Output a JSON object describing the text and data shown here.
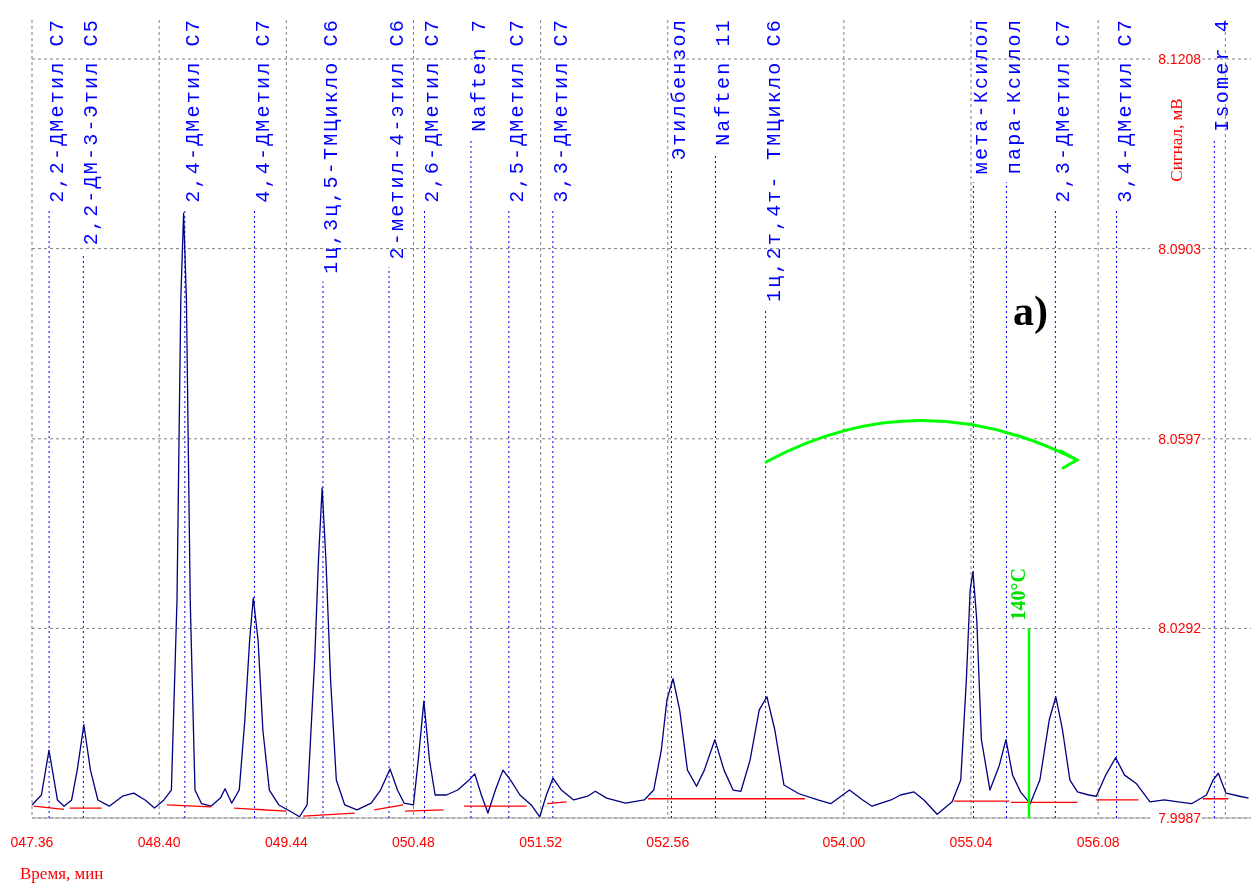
{
  "chart_data": {
    "type": "line",
    "xlabel": "Время, мин",
    "ylabel": "Сигнал, мВ",
    "xlim": [
      47.36,
      57.33
    ],
    "ylim": [
      7.9987,
      8.1208
    ],
    "xticks": [
      {
        "value": 47.36,
        "label": "047.36"
      },
      {
        "value": 48.4,
        "label": "048.40"
      },
      {
        "value": 49.44,
        "label": "049.44"
      },
      {
        "value": 50.48,
        "label": "050.48"
      },
      {
        "value": 51.52,
        "label": "051.52"
      },
      {
        "value": 52.56,
        "label": "052.56"
      },
      {
        "value": 54.0,
        "label": "054.00"
      },
      {
        "value": 55.04,
        "label": "055.04"
      },
      {
        "value": 56.08,
        "label": "056.08"
      },
      {
        "value": 57.12,
        "label": null
      }
    ],
    "yticks": [
      7.9987,
      8.0292,
      8.0597,
      8.0903,
      8.1208
    ],
    "grid": true,
    "series": [
      {
        "color": "#000080",
        "x": [
          47.36,
          47.437,
          47.499,
          47.568,
          47.622,
          47.684,
          47.73,
          47.784,
          47.838,
          47.899,
          47.992,
          48.1,
          48.192,
          48.285,
          48.362,
          48.439,
          48.5,
          48.546,
          48.577,
          48.6,
          48.623,
          48.654,
          48.693,
          48.747,
          48.824,
          48.901,
          48.939,
          48.993,
          49.055,
          49.101,
          49.14,
          49.17,
          49.209,
          49.248,
          49.301,
          49.379,
          49.479,
          49.548,
          49.61,
          49.672,
          49.703,
          49.733,
          49.764,
          49.802,
          49.849,
          49.918,
          50.018,
          50.134,
          50.211,
          50.288,
          50.349,
          50.403,
          50.48,
          50.519,
          50.565,
          50.611,
          50.657,
          50.75,
          50.842,
          50.935,
          50.981,
          51.035,
          51.089,
          51.15,
          51.212,
          51.274,
          51.351,
          51.443,
          51.513,
          51.567,
          51.621,
          51.69,
          51.79,
          51.905,
          51.967,
          52.06,
          52.214,
          52.368,
          52.445,
          52.507,
          52.553,
          52.603,
          52.657,
          52.721,
          52.795,
          52.859,
          52.945,
          53.02,
          53.094,
          53.158,
          53.233,
          53.308,
          53.371,
          53.435,
          53.51,
          53.633,
          53.787,
          53.893,
          54.046,
          54.154,
          54.231,
          54.386,
          54.463,
          54.574,
          54.655,
          54.763,
          54.886,
          54.956,
          55.002,
          55.033,
          55.056,
          55.087,
          55.125,
          55.195,
          55.272,
          55.326,
          55.38,
          55.445,
          55.524,
          55.603,
          55.68,
          55.734,
          55.788,
          55.849,
          55.911,
          56.003,
          56.065,
          56.142,
          56.223,
          56.296,
          56.394,
          56.504,
          56.62,
          56.735,
          56.843,
          56.966,
          57.02,
          57.063,
          57.125,
          57.236,
          57.31
        ],
        "values": [
          8.0008,
          8.0024,
          8.0096,
          8.0016,
          8.0006,
          8.0016,
          8.0064,
          8.0137,
          8.0064,
          8.0016,
          8.0006,
          8.0022,
          8.0027,
          8.0016,
          8.0003,
          8.0016,
          8.0032,
          8.0338,
          8.0821,
          8.096,
          8.0821,
          8.0338,
          8.0032,
          8.001,
          8.0006,
          8.0019,
          8.0034,
          8.0011,
          8.0032,
          8.0145,
          8.0273,
          8.0341,
          8.0273,
          8.0129,
          8.0032,
          8.0008,
          7.9997,
          7.9989,
          8.0008,
          8.0241,
          8.0402,
          8.0518,
          8.0402,
          8.0209,
          8.0048,
          8.0008,
          8.0,
          8.0011,
          8.0032,
          8.0066,
          8.0032,
          8.0011,
          8.0008,
          8.008,
          8.0175,
          8.008,
          8.0024,
          8.0024,
          8.0032,
          8.0048,
          8.0058,
          8.0024,
          7.9995,
          8.0032,
          8.0064,
          8.0048,
          8.0024,
          8.0008,
          7.9989,
          8.0024,
          8.0051,
          8.0032,
          8.0016,
          8.0022,
          8.003,
          8.0019,
          8.0011,
          8.0016,
          8.0032,
          8.0096,
          8.0177,
          8.0211,
          8.0161,
          8.0064,
          8.0038,
          8.0064,
          8.0113,
          8.0064,
          8.0032,
          8.003,
          8.008,
          8.0161,
          8.0182,
          8.0129,
          8.004,
          8.0026,
          8.0016,
          8.001,
          8.0032,
          8.0016,
          8.0006,
          8.0016,
          8.0024,
          8.0029,
          8.0016,
          7.9993,
          8.0013,
          8.0048,
          8.0209,
          8.0354,
          8.0383,
          8.0306,
          8.0113,
          8.0032,
          8.0072,
          8.0113,
          8.0056,
          8.0029,
          8.001,
          8.0048,
          8.0145,
          8.0182,
          8.0129,
          8.0048,
          8.0029,
          8.0024,
          8.0022,
          8.0056,
          8.0084,
          8.0056,
          8.0042,
          8.0013,
          8.0016,
          8.0013,
          8.001,
          8.0024,
          8.0048,
          8.0059,
          8.0027,
          8.0022,
          8.0019
        ]
      },
      {
        "color": "#ff0000",
        "x": [
          47.375,
          47.622,
          47.64,
          47.668,
          47.93,
          48.2,
          48.462,
          48.824,
          48.9,
          49.013,
          49.44,
          49.5,
          49.579,
          49.999,
          50.1,
          50.16,
          50.395,
          50.4,
          50.411,
          50.727,
          50.8,
          50.893,
          51.405,
          51.5,
          51.574,
          51.732,
          52.0,
          52.399,
          53.682,
          54.4,
          54.902,
          55.353,
          55.36,
          55.368,
          55.911,
          56.0,
          56.065,
          56.41,
          56.7,
          56.936,
          57.144
        ],
        "values": [
          8.0006,
          8.0001,
          null,
          8.0003,
          8.0003,
          null,
          8.0008,
          8.0005,
          null,
          8.0003,
          7.9998,
          null,
          7.999,
          7.9995,
          null,
          8.0,
          8.0008,
          null,
          7.9998,
          8.0,
          null,
          8.0006,
          8.0006,
          null,
          8.001,
          8.0013,
          null,
          8.0018,
          8.0018,
          null,
          8.0014,
          8.0014,
          null,
          8.0012,
          8.0012,
          null,
          8.0016,
          8.0016,
          null,
          8.0018,
          8.0018
        ]
      },
      {
        "color": "#00ff00",
        "x": [
          55.514,
          55.514
        ],
        "values": [
          7.9987,
          8.0292
        ]
      }
    ],
    "ref_lines": [
      {
        "axis": "x",
        "value": 47.5,
        "label": "2,2-ДМетил С7",
        "color": "#0000ff",
        "line_style": "dotted"
      },
      {
        "axis": "x",
        "value": 47.78,
        "label": "2,2-ДМ-3-Этил С5",
        "color": "#0000ff",
        "line_style": "dotted"
      },
      {
        "axis": "x",
        "value": 48.61,
        "label": "2,4-ДМетил С7",
        "color": "#0000ff",
        "line_style": "dotted"
      },
      {
        "axis": "x",
        "value": 49.18,
        "label": "4,4-ДМетил С7",
        "color": "#0000ff",
        "line_style": "dotted"
      },
      {
        "axis": "x",
        "value": 49.74,
        "label": "1ц,3ц,5-ТМЦикло С6",
        "color": "#0000ff",
        "line_style": "dotted"
      },
      {
        "axis": "x",
        "value": 50.28,
        "label": "2-метил-4-этил С6",
        "color": "#0000ff",
        "line_style": "dotted"
      },
      {
        "axis": "x",
        "value": 50.57,
        "label": "2,6-ДМетил С7",
        "color": "#0000ff",
        "line_style": "dotted"
      },
      {
        "axis": "x",
        "value": 50.95,
        "label": "Naften 7",
        "color": "#0000ff",
        "line_style": "dotted"
      },
      {
        "axis": "x",
        "value": 51.26,
        "label": "2,5-ДМетил С7",
        "color": "#0000ff",
        "line_style": "dotted"
      },
      {
        "axis": "x",
        "value": 51.62,
        "label": "3,3-ДМетил С7",
        "color": "#0000ff",
        "line_style": "dotted"
      },
      {
        "axis": "x",
        "value": 52.59,
        "label": "Этилбензол",
        "color": "#0000ff",
        "line_style": "dotted"
      },
      {
        "axis": "x",
        "value": 52.95,
        "label": "Naften 11",
        "color": "#0000ff",
        "line_style": "dotted"
      },
      {
        "axis": "x",
        "value": 53.36,
        "label": "1ц,2т,4т- ТМЦикло С6",
        "color": "#0000ff",
        "line_style": "dotted"
      },
      {
        "axis": "x",
        "value": 55.06,
        "label": "мета-Ксилол",
        "color": "#0000ff",
        "line_style": "dotted"
      },
      {
        "axis": "x",
        "value": 55.33,
        "label": "пара-Ксилол",
        "color": "#0000ff",
        "line_style": "dotted"
      },
      {
        "axis": "x",
        "value": 55.73,
        "label": "2,3-ДМетил С7",
        "color": "#0000ff",
        "line_style": "dotted"
      },
      {
        "axis": "x",
        "value": 56.23,
        "label": "3,4-ДМетил С7",
        "color": "#0000ff",
        "line_style": "dotted"
      },
      {
        "axis": "x",
        "value": 57.03,
        "label": "Isomer 4",
        "color": "#0000ff",
        "line_style": "dotted"
      }
    ],
    "annotations": [
      "a)",
      {
        "text": "140°C",
        "x": 55.514,
        "y": 8.0292
      }
    ]
  }
}
